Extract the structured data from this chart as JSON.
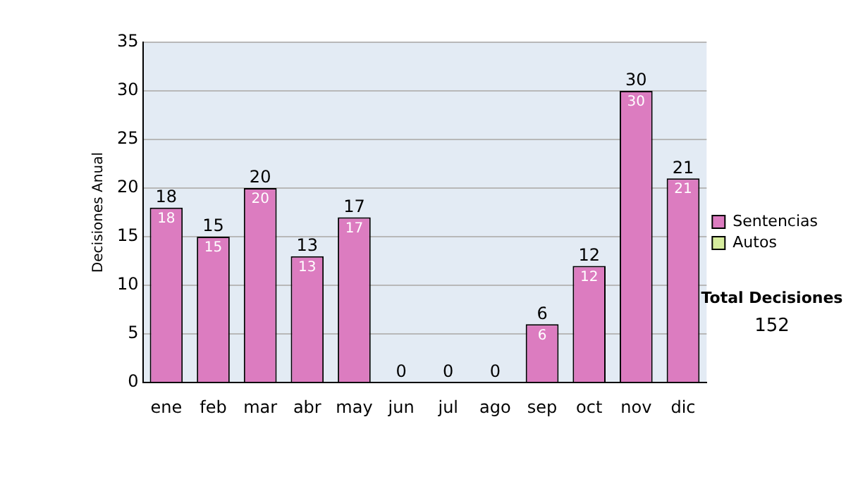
{
  "chart_data": {
    "type": "bar",
    "ylabel": "Decisiones Anual",
    "categories": [
      "ene",
      "feb",
      "mar",
      "abr",
      "may",
      "jun",
      "jul",
      "ago",
      "sep",
      "oct",
      "nov",
      "dic"
    ],
    "series": [
      {
        "name": "Sentencias",
        "color": "#dc7cc0",
        "values": [
          18,
          15,
          20,
          13,
          17,
          0,
          0,
          0,
          6,
          12,
          30,
          21
        ],
        "value_labels": [
          "18",
          "15",
          "20",
          "13",
          "17",
          null,
          null,
          null,
          "6",
          "12",
          "30",
          "21"
        ]
      },
      {
        "name": "Autos",
        "color": "#d6ec9e",
        "values": [
          0,
          0,
          0,
          0,
          0,
          0,
          0,
          0,
          0,
          0,
          0,
          0
        ]
      }
    ],
    "stacked": true,
    "totals": [
      "18",
      "15",
      "20",
      "13",
      "17",
      "0",
      "0",
      "0",
      "6",
      "12",
      "30",
      "21"
    ],
    "ylim": [
      0,
      35
    ],
    "yticks": [
      0,
      5,
      10,
      15,
      20,
      25,
      30,
      35
    ],
    "grid": "y",
    "legend": "right",
    "annotations": [
      "Total Decisiones",
      "152"
    ]
  }
}
